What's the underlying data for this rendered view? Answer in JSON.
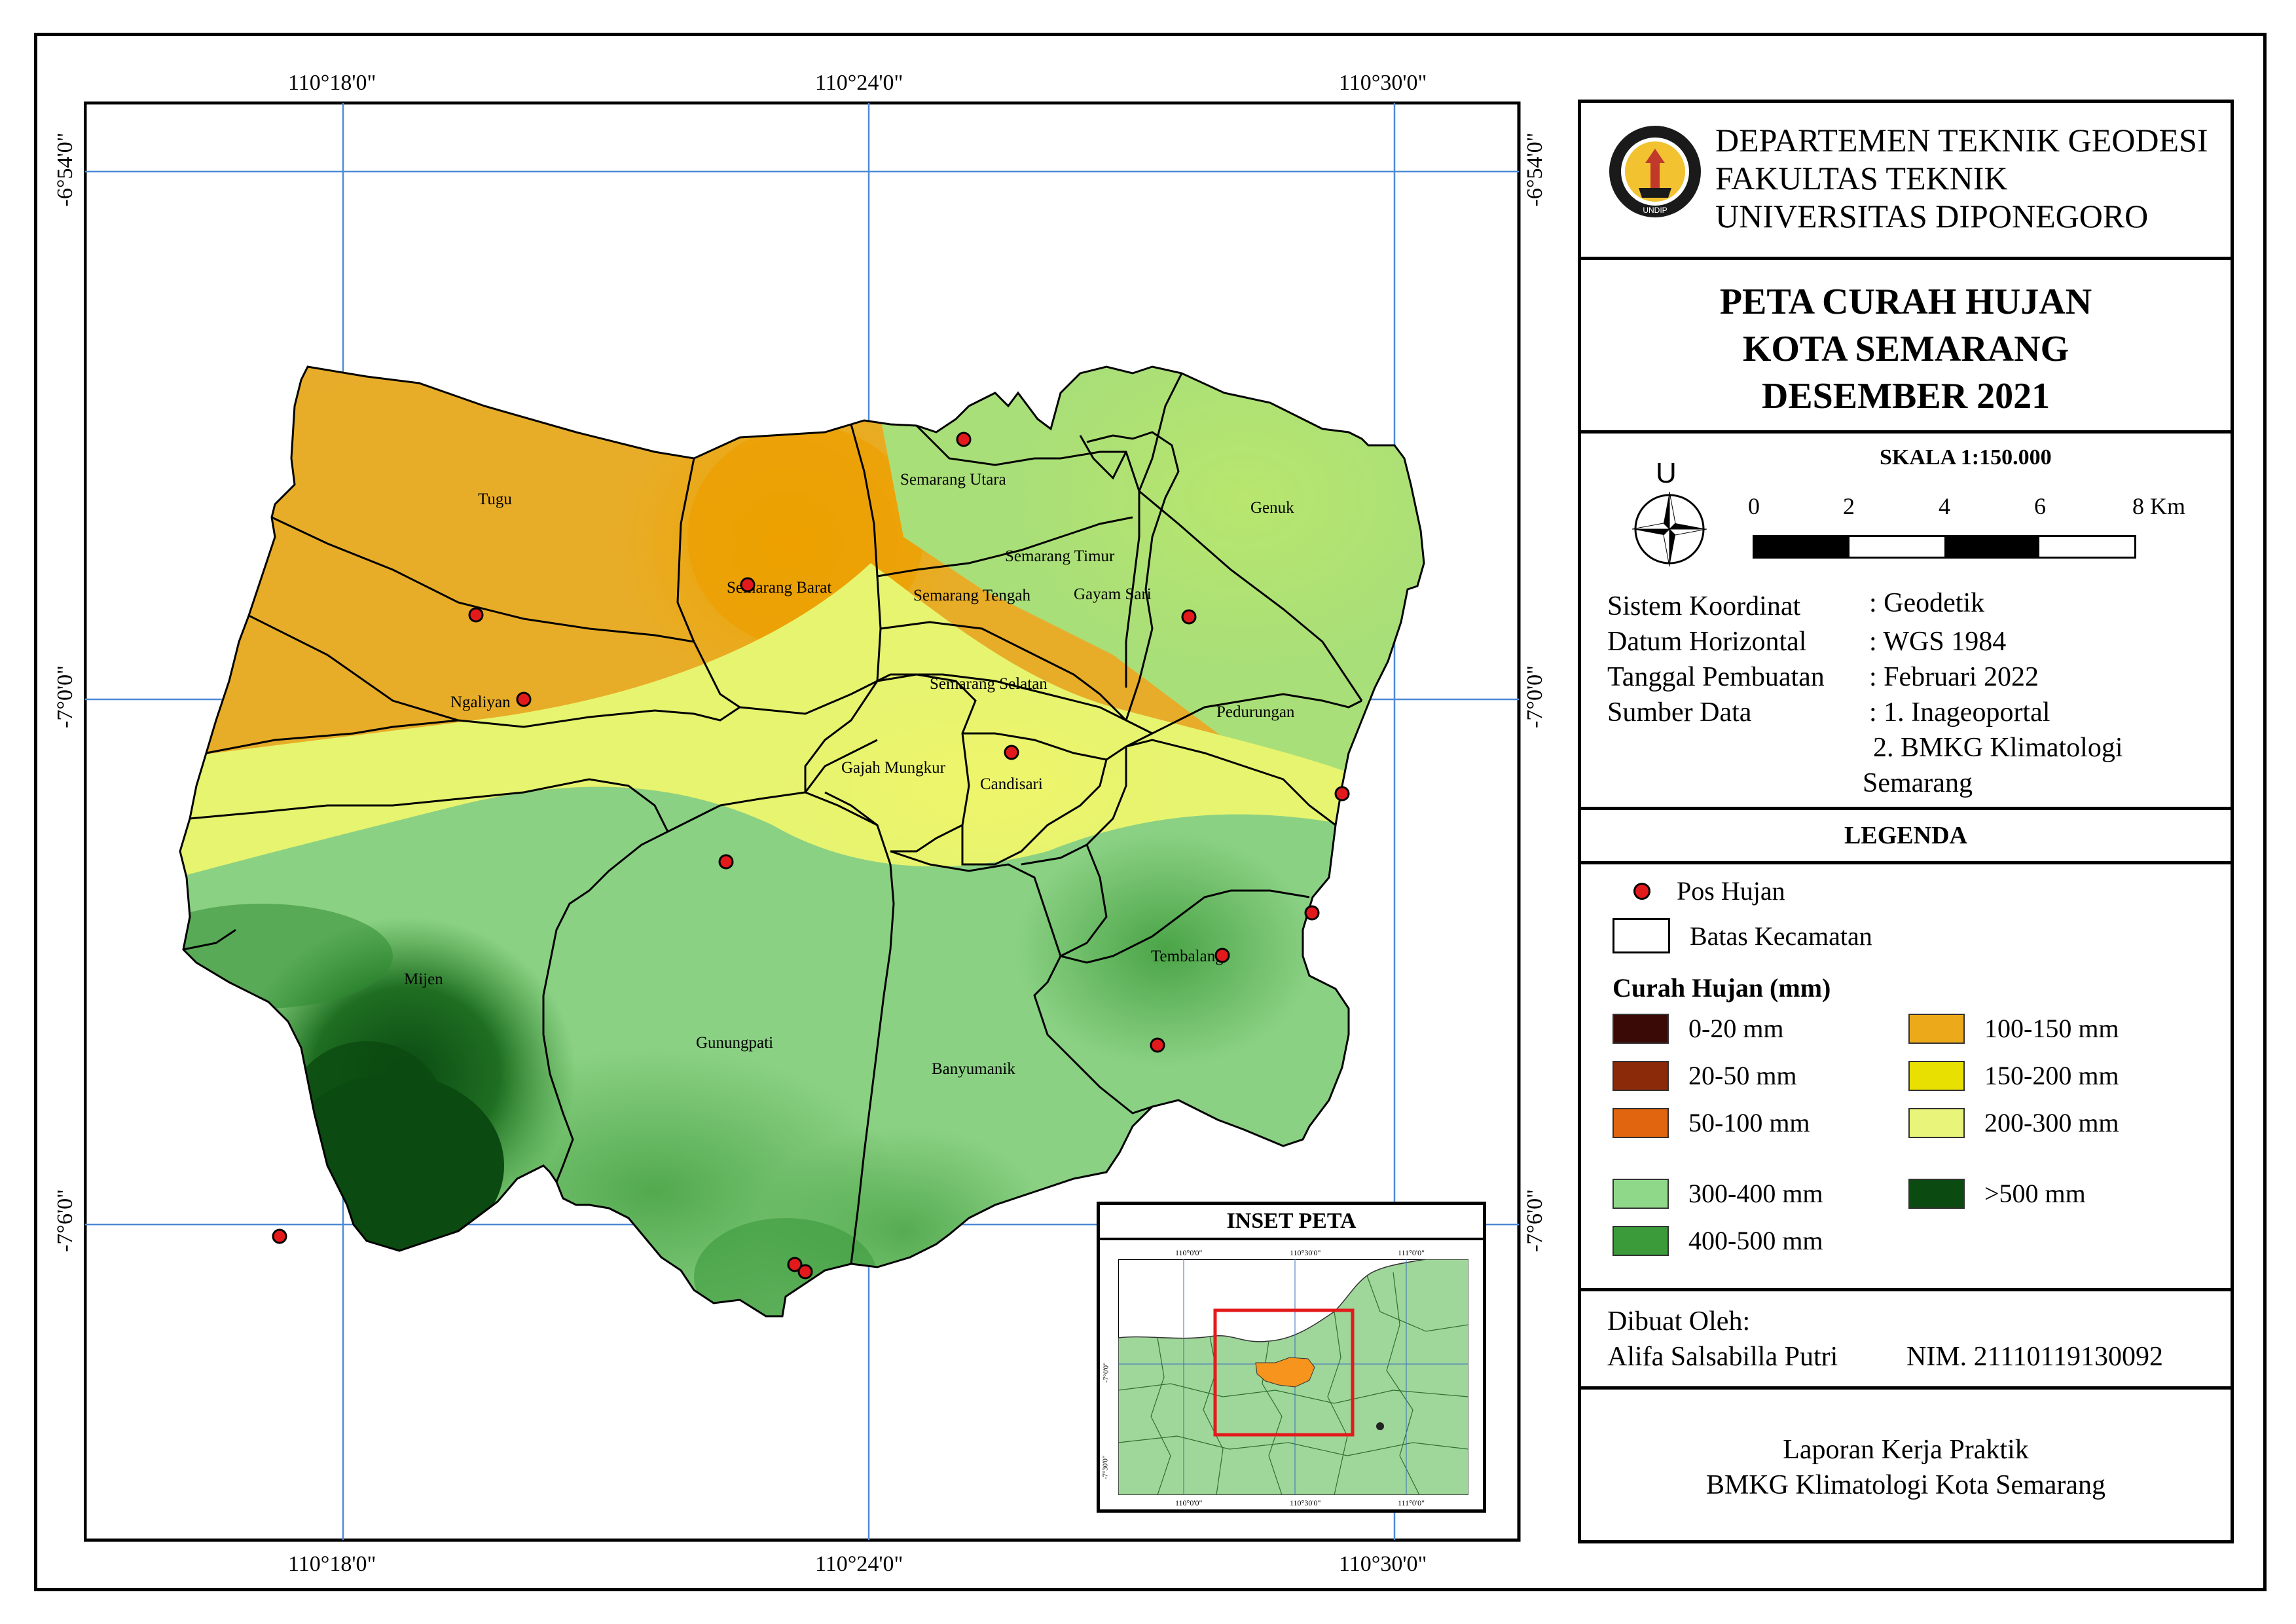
{
  "map": {
    "coords": {
      "top": [
        "110°18'0\"",
        "110°24'0\"",
        "110°30'0\""
      ],
      "bottom": [
        "110°18'0\"",
        "110°24'0\"",
        "110°30'0\""
      ],
      "left": [
        "-6°54'0\"",
        "-7°0'0\"",
        "-7°6'0\""
      ],
      "right": [
        "-6°54'0\"",
        "-7°0'0\"",
        "-7°6'0\""
      ]
    },
    "districts": {
      "tugu": "Tugu",
      "semarang_barat": "Semarang Barat",
      "ngaliyan": "Ngaliyan",
      "semarang_utara": "Semarang Utara",
      "semarang_timur": "Semarang Timur",
      "semarang_tengah": "Semarang Tengah",
      "gayam_sari": "Gayam Sari",
      "genuk": "Genuk",
      "semarang_selatan": "Semarang Selatan",
      "pedurungan": "Pedurungan",
      "gajah_mungkur": "Gajah Mungkur",
      "candisari": "Candisari",
      "mijen": "Mijen",
      "gunungpati": "Gunungpati",
      "banyumanik": "Banyumanik",
      "tembalang": "Tembalang"
    },
    "rain_station_color": "#e31a1c"
  },
  "header": {
    "line1": "DEPARTEMEN TEKNIK GEODESI",
    "line2": "FAKULTAS TEKNIK",
    "line3": "UNIVERSITAS DIPONEGORO",
    "logo_name": "undip-logo"
  },
  "title": {
    "line1": "PETA CURAH HUJAN",
    "line2": "KOTA SEMARANG",
    "line3": "DESEMBER 2021"
  },
  "scale": {
    "label": "SKALA 1:150.000",
    "north": "U",
    "ticks": [
      "0",
      "2",
      "4",
      "6",
      "8 Km"
    ]
  },
  "info": [
    {
      "label": "Sistem Koordinat",
      "value": ":  Geodetik"
    },
    {
      "label": "Datum Horizontal",
      "value": ":  WGS 1984"
    },
    {
      "label": "Tanggal Pembuatan",
      "value": ":  Februari 2022"
    },
    {
      "label": "Sumber Data",
      "value": ": 1. Inageoportal"
    }
  ],
  "info_extra": {
    "line1": "2. BMKG Klimatologi",
    "line2": "Semarang"
  },
  "legend": {
    "heading": "LEGENDA",
    "pos_hujan": "Pos Hujan",
    "batas": "Batas Kecamatan",
    "curah_heading": "Curah Hujan (mm)",
    "classes": [
      {
        "label": "0-20 mm",
        "color": "#3a0a06"
      },
      {
        "label": "20-50 mm",
        "color": "#8a2a08"
      },
      {
        "label": "50-100 mm",
        "color": "#e0650e"
      },
      {
        "label": "100-150 mm",
        "color": "#ecaa1a"
      },
      {
        "label": "150-200 mm",
        "color": "#e8e000"
      },
      {
        "label": "200-300 mm",
        "color": "#e8f47a"
      },
      {
        "label": "300-400 mm",
        "color": "#8fd88a"
      },
      {
        "label": ">500 mm",
        "color": "#0b4a10"
      },
      {
        "label": "400-500 mm",
        "color": "#3b9a3a"
      }
    ]
  },
  "author": {
    "label": "Dibuat Oleh:",
    "name": "Alifa Salsabilla Putri",
    "nim": "NIM. 21110119130092"
  },
  "footer": {
    "line1": "Laporan Kerja Praktik",
    "line2": "BMKG Klimatologi Kota Semarang"
  },
  "inset": {
    "title": "INSET PETA",
    "top_coords": [
      "110°0'0\"",
      "110°30'0\"",
      "111°0'0\""
    ],
    "bottom_coords": [
      "110°0'0\"",
      "110°30'0\"",
      "111°0'0\""
    ],
    "left_coords": [
      "-7°0'0\"",
      "-7°30'0\""
    ],
    "highlight_color": "#f7941d",
    "frame_color": "#e31a1c"
  }
}
